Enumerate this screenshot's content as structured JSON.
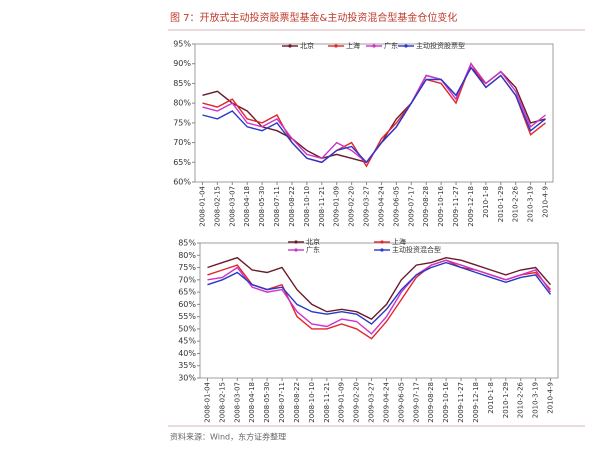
{
  "title": "图 7：开放式主动投资股票型基金&主动投资混合型基金仓位变化",
  "source": "资料来源：Wind，东方证券整理",
  "chart_data": [
    {
      "type": "line",
      "categories": [
        "2008-01-04",
        "2008-02-15",
        "2008-03-07",
        "2008-04-18",
        "2008-05-30",
        "2008-07-11",
        "2008-08-22",
        "2008-10-10",
        "2008-11-21",
        "2009-01-09",
        "2009-02-20",
        "2009-03-27",
        "2009-04-24",
        "2009-06-05",
        "2009-07-17",
        "2009-08-28",
        "2009-10-16",
        "2009-11-27",
        "2009-12-18",
        "2010-1-8",
        "2010-1-29",
        "2010-2-26",
        "2010-3-19",
        "2010-4-9"
      ],
      "ylim": [
        60,
        95
      ],
      "yticks": [
        {
          "value": 60,
          "label": "60%"
        },
        {
          "value": 65,
          "label": "65%"
        },
        {
          "value": 70,
          "label": "70%"
        },
        {
          "value": 75,
          "label": "75%"
        },
        {
          "value": 80,
          "label": "80%"
        },
        {
          "value": 85,
          "label": "85%"
        },
        {
          "value": 90,
          "label": "90%"
        },
        {
          "value": 95,
          "label": "95%"
        }
      ],
      "series": [
        {
          "name": "北京",
          "color": "#6b1a2a",
          "values": [
            82,
            83,
            80,
            78,
            74,
            73,
            71,
            68,
            66,
            67,
            66,
            65,
            70,
            76,
            80,
            87,
            86,
            82,
            89,
            85,
            88,
            84,
            75,
            76
          ]
        },
        {
          "name": "上海",
          "color": "#e3262b",
          "values": [
            80,
            79,
            81,
            76,
            75,
            77,
            70,
            66,
            65,
            68,
            70,
            64,
            71,
            75,
            80,
            86,
            85,
            80,
            90,
            84,
            87,
            82,
            72,
            75
          ]
        },
        {
          "name": "广东",
          "color": "#cc33cc",
          "values": [
            79,
            78,
            80,
            75,
            74,
            76,
            71,
            67,
            66,
            70,
            68,
            65,
            70,
            74,
            80,
            87,
            86,
            81,
            90,
            85,
            88,
            83,
            74,
            77
          ]
        },
        {
          "name": "主动投资股票型",
          "color": "#2838c8",
          "values": [
            77,
            76,
            78,
            74,
            73,
            75,
            70,
            66,
            65,
            68,
            69,
            65,
            70,
            74,
            80,
            86,
            86,
            82,
            89,
            84,
            87,
            82,
            73,
            76
          ]
        }
      ]
    },
    {
      "type": "line",
      "categories": [
        "2008-01-04",
        "2008-02-15",
        "2008-03-07",
        "2008-04-18",
        "2008-05-30",
        "2008-07-11",
        "2008-08-22",
        "2008-10-10",
        "2008-11-21",
        "2009-01-09",
        "2009-02-20",
        "2009-03-27",
        "2009-04-24",
        "2009-06-05",
        "2009-07-17",
        "2009-08-28",
        "2009-10-16",
        "2009-11-27",
        "2009-12-18",
        "2010-1-8",
        "2010-1-29",
        "2010-2-26",
        "2010-3-19",
        "2010-4-9"
      ],
      "ylim": [
        30,
        85
      ],
      "yticks": [
        {
          "value": 30,
          "label": "30%"
        },
        {
          "value": 35,
          "label": "35%"
        },
        {
          "value": 40,
          "label": "40%"
        },
        {
          "value": 45,
          "label": "45%"
        },
        {
          "value": 50,
          "label": "50%"
        },
        {
          "value": 55,
          "label": "55%"
        },
        {
          "value": 60,
          "label": "60%"
        },
        {
          "value": 65,
          "label": "65%"
        },
        {
          "value": 70,
          "label": "70%"
        },
        {
          "value": 75,
          "label": "75%"
        },
        {
          "value": 80,
          "label": "80%"
        },
        {
          "value": 85,
          "label": "85%"
        }
      ],
      "series": [
        {
          "name": "北京",
          "color": "#6b1a2a",
          "values": [
            75,
            77,
            79,
            74,
            73,
            75,
            66,
            60,
            57,
            58,
            57,
            54,
            60,
            70,
            76,
            77,
            79,
            78,
            76,
            74,
            72,
            74,
            75,
            68
          ]
        },
        {
          "name": "上海",
          "color": "#e3262b",
          "values": [
            72,
            74,
            76,
            68,
            66,
            68,
            55,
            50,
            50,
            52,
            50,
            46,
            53,
            62,
            71,
            76,
            78,
            75,
            74,
            72,
            70,
            72,
            73,
            66
          ]
        },
        {
          "name": "广东",
          "color": "#cc33cc",
          "values": [
            70,
            71,
            75,
            67,
            65,
            66,
            57,
            52,
            51,
            54,
            53,
            48,
            55,
            65,
            72,
            76,
            78,
            76,
            74,
            72,
            70,
            72,
            74,
            65
          ]
        },
        {
          "name": "主动投资混合型",
          "color": "#2838c8",
          "values": [
            68,
            70,
            73,
            68,
            66,
            67,
            60,
            57,
            56,
            57,
            56,
            52,
            58,
            66,
            72,
            75,
            77,
            75,
            73,
            71,
            69,
            71,
            72,
            64
          ]
        }
      ]
    }
  ]
}
